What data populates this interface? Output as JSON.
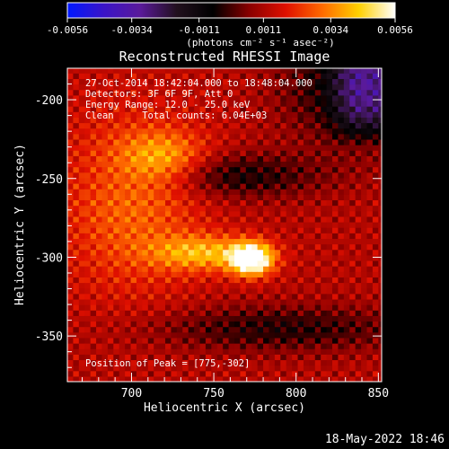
{
  "chart_data": {
    "type": "heatmap",
    "title": "Reconstructed RHESSI Image",
    "xlabel": "Heliocentric X (arcsec)",
    "ylabel": "Heliocentric Y (arcsec)",
    "xlim": [
      661,
      852
    ],
    "ylim": [
      -379,
      -180
    ],
    "xticks": [
      700,
      750,
      800,
      850
    ],
    "yticks": [
      -200,
      -250,
      -300,
      -350
    ],
    "colorbar": {
      "label": "(photons cm⁻² s⁻¹ asec⁻²)",
      "ticks": [
        "-0.0056",
        "-0.0034",
        "-0.0011",
        "0.0011",
        "0.0034",
        "0.0056"
      ],
      "min": -0.0056,
      "max": 0.0056,
      "colors": [
        "#0018ff",
        "#3a14c8",
        "#5a1a9a",
        "#22101e",
        "#000000",
        "#8a0000",
        "#e01000",
        "#ff6a00",
        "#ffd000",
        "#ffffff"
      ]
    },
    "annotations": [
      "27-Oct-2014 18:42:04.000 to 18:48:04.000",
      "Detectors: 3F 6F 9F, Att 0",
      "Energy Range: 12.0 - 25.0 keV",
      "Clean     Total counts: 6.04E+03"
    ],
    "peak_label": "Position of Peak = [775,-302]",
    "peak": {
      "x": 775,
      "y": -302,
      "value": 0.0056
    },
    "sources": [
      {
        "x": 773,
        "y": -301,
        "sx": 9,
        "sy": 7,
        "amp": 0.0056
      },
      {
        "x": 745,
        "y": -297,
        "sx": 22,
        "sy": 8,
        "amp": 0.0026
      },
      {
        "x": 720,
        "y": -237,
        "sx": 18,
        "sy": 12,
        "amp": 0.002
      },
      {
        "x": 700,
        "y": -265,
        "sx": 30,
        "sy": 40,
        "amp": 0.0018
      }
    ],
    "background": 0.0012,
    "ripple_amplitude": 0.0008,
    "negative_regions": [
      {
        "x": 760,
        "y": -248,
        "sx": 38,
        "sy": 10,
        "amp": -0.0018
      },
      {
        "x": 790,
        "y": -345,
        "sx": 55,
        "sy": 10,
        "amp": -0.0016
      },
      {
        "x": 840,
        "y": -190,
        "sx": 30,
        "sy": 25,
        "amp": -0.0025
      }
    ],
    "timestamp": "18-May-2022 18:46"
  }
}
